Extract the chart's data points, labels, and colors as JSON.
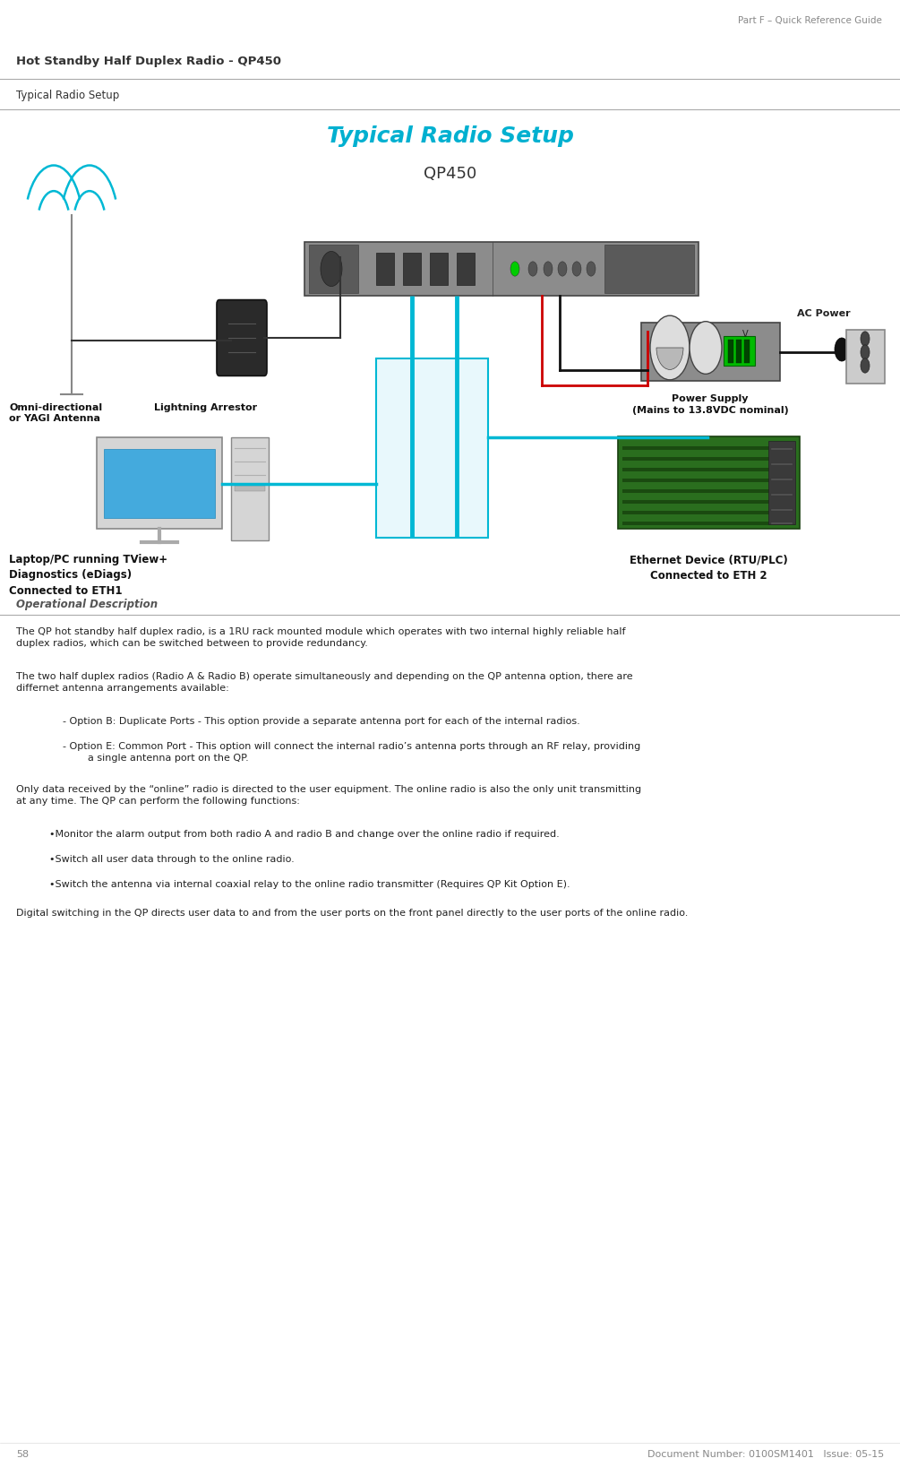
{
  "page_width": 10.05,
  "page_height": 16.37,
  "dpi": 100,
  "bg_color": "#ffffff",
  "header_text": "Part F – Quick Reference Guide",
  "header_color": "#888888",
  "header_fontsize": 7.5,
  "section_title": "Hot Standby Half Duplex Radio - QP450",
  "section_title_color": "#333333",
  "section_title_fontsize": 9.5,
  "subsection_title": "Typical Radio Setup",
  "subsection_title_color": "#333333",
  "subsection_title_fontsize": 8.5,
  "diagram_title": "Typical Radio Setup",
  "diagram_title_color": "#00b0d0",
  "diagram_title_fontsize": 18,
  "diagram_subtitle": "QP450",
  "diagram_subtitle_color": "#333333",
  "diagram_subtitle_fontsize": 13,
  "op_desc_title": "Operational Description",
  "op_desc_title_color": "#555555",
  "op_desc_title_fontsize": 8.5,
  "body_fontsize": 8.0,
  "body_color": "#222222",
  "body_text_1": "The QP hot standby half duplex radio, is a 1RU rack mounted module which operates with two internal highly reliable half\nduplex radios, which can be switched between to provide redundancy.",
  "body_text_2": "The two half duplex radios (Radio A & Radio B) operate simultaneously and depending on the QP antenna option, there are\ndiffernet antenna arrangements available:",
  "body_text_3": "- Option B: Duplicate Ports - This option provide a separate antenna port for each of the internal radios.",
  "body_text_4": "- Option E: Common Port - This option will connect the internal radio’s antenna ports through an RF relay, providing\n        a single antenna port on the QP.",
  "body_text_5": "Only data received by the “online” radio is directed to the user equipment. The online radio is also the only unit transmitting\nat any time. The QP can perform the following functions:",
  "body_text_6": "•Monitor the alarm output from both radio A and radio B and change over the online radio if required.",
  "body_text_7": "•Switch all user data through to the online radio.",
  "body_text_8": "•Switch the antenna via internal coaxial relay to the online radio transmitter (Requires QP Kit Option E).",
  "body_text_9": "Digital switching in the QP directs user data to and from the user ports on the front panel directly to the user ports of the online radio.",
  "footer_page": "58",
  "footer_doc": "Document Number: 0100SM1401   Issue: 05-15",
  "footer_color": "#888888",
  "footer_fontsize": 8.0,
  "line_color": "#aaaaaa",
  "antenna_color": "#888888",
  "wire_color": "#333333",
  "cable_cyan": "#00b8d4",
  "cable_red": "#cc0000",
  "cable_black": "#111111",
  "qp_body": "#8c8c8c",
  "qp_dark": "#5a5a5a",
  "qp_port": "#3a3a3a",
  "ps_body": "#8c8c8c",
  "ps_gauge_face": "#dddddd",
  "ps_green": "#00bb00",
  "outlet_body": "#cccccc",
  "outlet_hole": "#444444",
  "monitor_body": "#cccccc",
  "monitor_screen": "#44aadd",
  "monitor_stand": "#aaaaaa",
  "tower_body": "#cccccc",
  "eth_pcb": "#2a6e1e",
  "eth_pcb_dark": "#1a4a10",
  "eth_strip": "#444444",
  "label_bold_color": "#111111",
  "wifi_color": "#00b8d4"
}
